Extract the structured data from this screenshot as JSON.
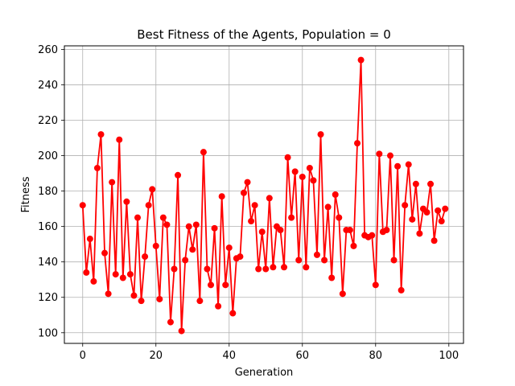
{
  "chart_data": {
    "type": "line",
    "title": "Best Fitness of the Agents, Population = 0",
    "xlabel": "Generation",
    "ylabel": "Fitness",
    "xlim": [
      -5,
      104
    ],
    "ylim": [
      94,
      262
    ],
    "xticks": [
      0,
      20,
      40,
      60,
      80,
      100
    ],
    "yticks": [
      100,
      120,
      140,
      160,
      180,
      200,
      220,
      240,
      260
    ],
    "grid": true,
    "series": [
      {
        "color": "#ff0000",
        "marker": "circle",
        "x": [
          0,
          1,
          2,
          3,
          4,
          5,
          6,
          7,
          8,
          9,
          10,
          11,
          12,
          13,
          14,
          15,
          16,
          17,
          18,
          19,
          20,
          21,
          22,
          23,
          24,
          25,
          26,
          27,
          28,
          29,
          30,
          31,
          32,
          33,
          34,
          35,
          36,
          37,
          38,
          39,
          40,
          41,
          42,
          43,
          44,
          45,
          46,
          47,
          48,
          49,
          50,
          51,
          52,
          53,
          54,
          55,
          56,
          57,
          58,
          59,
          60,
          61,
          62,
          63,
          64,
          65,
          66,
          67,
          68,
          69,
          70,
          71,
          72,
          73,
          74,
          75,
          76,
          77,
          78,
          79,
          80,
          81,
          82,
          83,
          84,
          85,
          86,
          87,
          88,
          89,
          90,
          91,
          92,
          93,
          94,
          95,
          96,
          97,
          98,
          99
        ],
        "values": [
          172,
          134,
          153,
          129,
          193,
          212,
          145,
          122,
          185,
          133,
          209,
          131,
          174,
          133,
          121,
          165,
          118,
          143,
          172,
          181,
          149,
          119,
          165,
          161,
          106,
          136,
          189,
          101,
          141,
          160,
          147,
          161,
          118,
          202,
          136,
          127,
          159,
          115,
          177,
          127,
          148,
          111,
          142,
          143,
          179,
          185,
          163,
          172,
          136,
          157,
          136,
          176,
          137,
          160,
          158,
          137,
          199,
          165,
          191,
          141,
          188,
          137,
          193,
          186,
          144,
          212,
          141,
          171,
          131,
          178,
          165,
          122,
          158,
          158,
          149,
          207,
          254,
          155,
          154,
          155,
          127,
          201,
          157,
          158,
          200,
          141,
          194,
          124,
          172,
          195,
          164,
          184,
          156,
          170,
          168,
          184,
          152,
          169,
          163,
          170
        ]
      }
    ]
  }
}
